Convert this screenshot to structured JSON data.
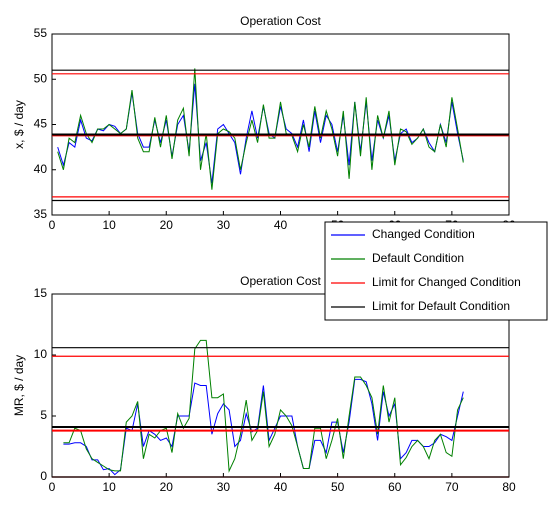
{
  "chart_data": [
    {
      "type": "line",
      "title": "Operation Cost",
      "ylabel": "x, $ / day",
      "xlim": [
        0,
        80
      ],
      "xticks": [
        0,
        10,
        20,
        30,
        40,
        50,
        60,
        70,
        80
      ],
      "ylim": [
        35,
        55
      ],
      "yticks": [
        35,
        40,
        45,
        50,
        55
      ],
      "grid": false,
      "legend": "lower-right",
      "x": [
        1,
        2,
        3,
        4,
        5,
        6,
        7,
        8,
        9,
        10,
        11,
        12,
        13,
        14,
        15,
        16,
        17,
        18,
        19,
        20,
        21,
        22,
        23,
        24,
        25,
        26,
        27,
        28,
        29,
        30,
        31,
        32,
        33,
        34,
        35,
        36,
        37,
        38,
        39,
        40,
        41,
        42,
        43,
        44,
        45,
        46,
        47,
        48,
        49,
        50,
        51,
        52,
        53,
        54,
        55,
        56,
        57,
        58,
        59,
        60,
        61,
        62,
        63,
        64,
        65,
        66,
        67,
        68,
        69,
        70,
        71,
        72
      ],
      "series": [
        {
          "name": "Changed Condition",
          "color": "#0000ff",
          "values": [
            42.5,
            40.5,
            43,
            42.5,
            45.5,
            43.5,
            43.2,
            44.5,
            44.3,
            45,
            44.8,
            44,
            44.5,
            48.5,
            44,
            42.5,
            42.5,
            45.5,
            43,
            45.5,
            41.5,
            45,
            46,
            42,
            49.5,
            41,
            43,
            38.5,
            44.5,
            45,
            44,
            43,
            39.5,
            43.5,
            46.5,
            43.5,
            47,
            44,
            43.5,
            47,
            44.5,
            44,
            42.5,
            45.5,
            42,
            46.5,
            43,
            46,
            45,
            42,
            46,
            40.5,
            47.5,
            42,
            47.5,
            41,
            45.5,
            43.5,
            46,
            41,
            44,
            44.5,
            43,
            43.5,
            44.5,
            43,
            42,
            45,
            43,
            47.5,
            44,
            41
          ]
        },
        {
          "name": "Default Condition",
          "color": "#008000",
          "values": [
            42,
            40,
            43.5,
            43,
            46,
            44,
            43,
            44.5,
            44.5,
            45,
            44.5,
            44,
            44.5,
            48.8,
            43.5,
            42,
            42,
            45.8,
            42.5,
            46,
            41.2,
            45.5,
            46.8,
            41.5,
            51.2,
            40,
            44,
            37.8,
            44,
            44.5,
            44.2,
            43.5,
            40,
            43,
            45.5,
            43,
            47.2,
            43.5,
            43.5,
            47.5,
            44,
            43.8,
            42,
            45,
            42.5,
            47,
            43.5,
            46.5,
            44.5,
            41.5,
            46.5,
            39,
            47.5,
            41.5,
            48,
            40,
            46,
            43.5,
            46.5,
            40.5,
            44.5,
            44.2,
            42.8,
            43.5,
            44.5,
            42.5,
            42,
            45,
            42.5,
            48,
            44.5,
            40.8
          ]
        },
        {
          "name": "Limit for Changed Condition",
          "color": "#ff0000",
          "hlines": [
            50.6,
            43.8,
            37.0
          ]
        },
        {
          "name": "Limit for Default Condition",
          "color": "#000000",
          "hlines": [
            51.0,
            43.9,
            36.6
          ]
        }
      ]
    },
    {
      "type": "line",
      "title": "Operation Cost",
      "ylabel": "MR, $ / day",
      "xlim": [
        0,
        80
      ],
      "xticks": [
        0,
        10,
        20,
        30,
        40,
        50,
        60,
        70,
        80
      ],
      "ylim": [
        0,
        15
      ],
      "yticks": [
        0,
        5,
        10,
        15
      ],
      "grid": false,
      "x": [
        2,
        3,
        4,
        5,
        6,
        7,
        8,
        9,
        10,
        11,
        12,
        13,
        14,
        15,
        16,
        17,
        18,
        19,
        20,
        21,
        22,
        23,
        24,
        25,
        26,
        27,
        28,
        29,
        30,
        31,
        32,
        33,
        34,
        35,
        36,
        37,
        38,
        39,
        40,
        41,
        42,
        43,
        44,
        45,
        46,
        47,
        48,
        49,
        50,
        51,
        52,
        53,
        54,
        55,
        56,
        57,
        58,
        59,
        60,
        61,
        62,
        63,
        64,
        65,
        66,
        67,
        68,
        69,
        70,
        71,
        72
      ],
      "series": [
        {
          "color": "#0000ff",
          "values": [
            2.7,
            2.7,
            2.8,
            2.8,
            2.5,
            1.4,
            1.4,
            0.6,
            0.7,
            0.2,
            0.6,
            4.0,
            3.8,
            6.0,
            2.5,
            3.8,
            3.5,
            3.0,
            3.2,
            2.5,
            5,
            5,
            5,
            7.7,
            7.5,
            7.5,
            3.5,
            5.2,
            6,
            5.5,
            2.5,
            3,
            5.2,
            3.7,
            4,
            7.5,
            3,
            4,
            5,
            5,
            5,
            2.5,
            0.7,
            0.7,
            3,
            3,
            2,
            4.5,
            4.5,
            2,
            4.5,
            8,
            8,
            7.8,
            6,
            3,
            7,
            5,
            6,
            1.5,
            2,
            3,
            3,
            2.5,
            2.5,
            2.8,
            3.5,
            3.3,
            3,
            5,
            7
          ]
        },
        {
          "color": "#008000",
          "values": [
            2.8,
            2.8,
            4,
            3.8,
            2.3,
            1.5,
            1.2,
            0.9,
            0.6,
            0.5,
            0.5,
            4.5,
            5,
            6.2,
            1.5,
            3.5,
            3.2,
            3.8,
            4,
            2,
            5.2,
            4,
            4.8,
            10.5,
            11.2,
            11.2,
            6.5,
            6.5,
            6.8,
            0.5,
            1.5,
            3.5,
            6.3,
            3,
            3.8,
            7,
            2.5,
            3.5,
            5.5,
            5,
            4.2,
            2.5,
            0.7,
            0.7,
            4,
            4,
            1.5,
            3,
            4.8,
            1.5,
            5,
            8.2,
            8.2,
            7.5,
            6.5,
            3.5,
            7.5,
            4.5,
            6.5,
            1,
            1.6,
            2.5,
            3,
            2.5,
            1.5,
            3,
            3.5,
            2,
            1.7,
            5.5,
            6.5
          ]
        },
        {
          "color": "#ff0000",
          "hlines": [
            9.9,
            3.8,
            0
          ]
        },
        {
          "color": "#000000",
          "hlines": [
            10.6,
            4.1,
            0
          ]
        }
      ]
    }
  ]
}
